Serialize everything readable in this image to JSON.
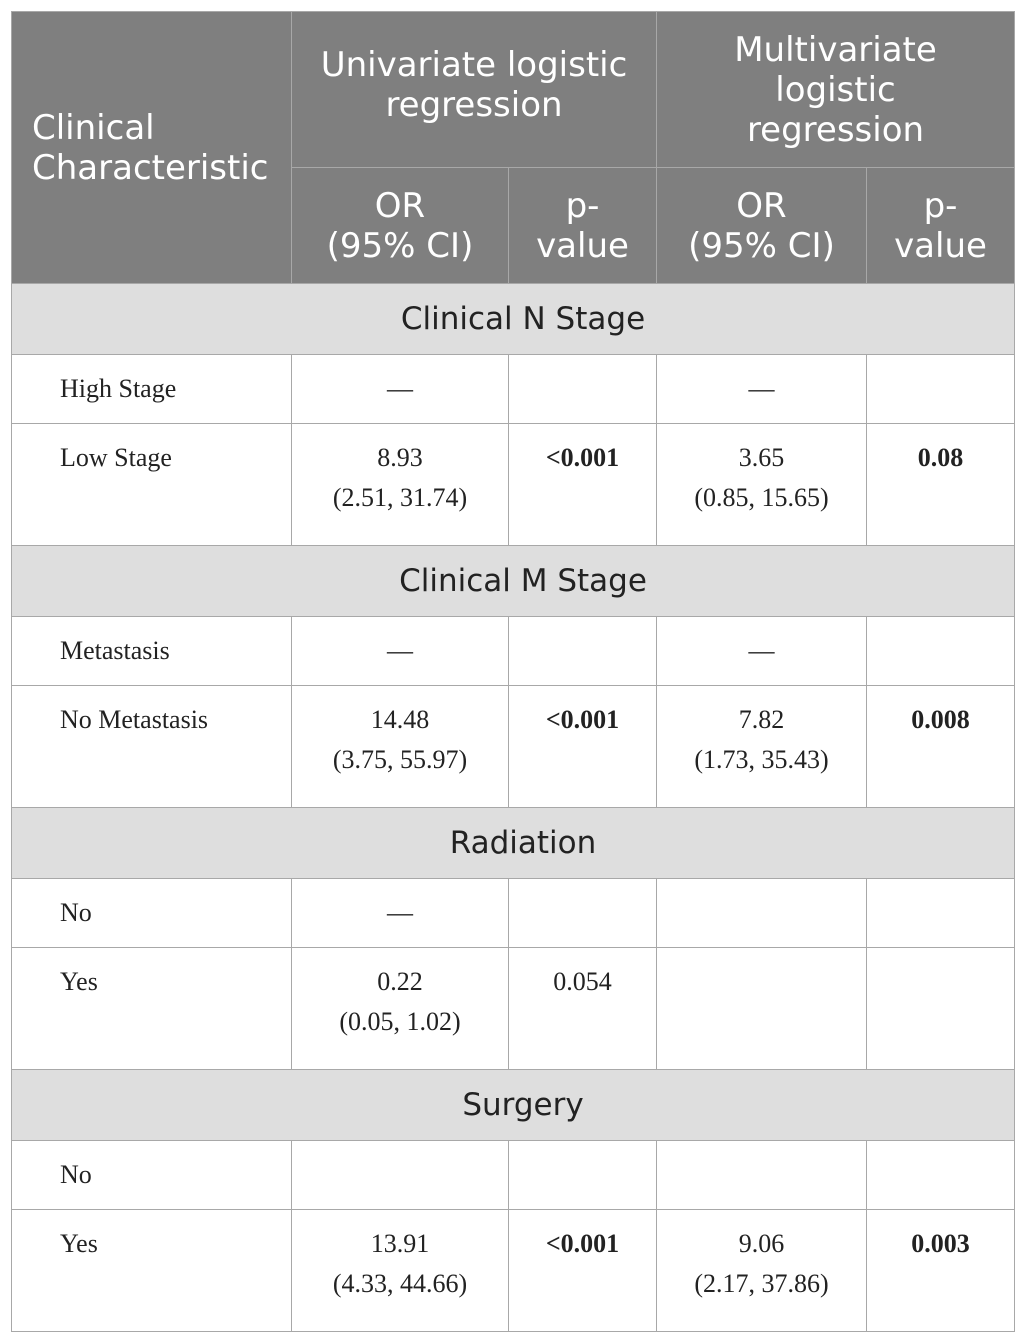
{
  "header": {
    "clinical_characteristic": [
      "Clinical",
      "Characteristic"
    ],
    "univariate": [
      "Univariate logistic",
      "regression"
    ],
    "multivariate": [
      "Multivariate",
      "logistic",
      "regression"
    ],
    "or_ci": [
      "OR",
      "(95% CI)"
    ],
    "p_value": [
      "p-",
      "value"
    ]
  },
  "sections": [
    {
      "title": "Clinical N Stage",
      "rows": [
        {
          "label": "High Stage",
          "uni_or": "—",
          "uni_ci": "",
          "uni_p": "",
          "uni_p_bold": false,
          "multi_or": "—",
          "multi_ci": "",
          "multi_p": "",
          "multi_p_bold": false
        },
        {
          "label": "Low Stage",
          "uni_or": "8.93",
          "uni_ci": "(2.51, 31.74)",
          "uni_p": "<0.001",
          "uni_p_bold": true,
          "multi_or": "3.65",
          "multi_ci": "(0.85, 15.65)",
          "multi_p": "0.08",
          "multi_p_bold": true
        }
      ]
    },
    {
      "title": "Clinical M Stage",
      "rows": [
        {
          "label": "Metastasis",
          "uni_or": "—",
          "uni_ci": "",
          "uni_p": "",
          "uni_p_bold": false,
          "multi_or": "—",
          "multi_ci": "",
          "multi_p": "",
          "multi_p_bold": false
        },
        {
          "label": "No Metastasis",
          "uni_or": "14.48",
          "uni_ci": "(3.75, 55.97)",
          "uni_p": "<0.001",
          "uni_p_bold": true,
          "multi_or": "7.82",
          "multi_ci": "(1.73, 35.43)",
          "multi_p": "0.008",
          "multi_p_bold": true
        }
      ]
    },
    {
      "title": "Radiation",
      "rows": [
        {
          "label": "No",
          "uni_or": "—",
          "uni_ci": "",
          "uni_p": "",
          "uni_p_bold": false,
          "multi_or": "",
          "multi_ci": "",
          "multi_p": "",
          "multi_p_bold": false
        },
        {
          "label": "Yes",
          "uni_or": "0.22",
          "uni_ci": "(0.05, 1.02)",
          "uni_p": "0.054",
          "uni_p_bold": false,
          "multi_or": "",
          "multi_ci": "",
          "multi_p": "",
          "multi_p_bold": false
        }
      ]
    },
    {
      "title": "Surgery",
      "rows": [
        {
          "label": "No",
          "uni_or": "",
          "uni_ci": "",
          "uni_p": "",
          "uni_p_bold": false,
          "multi_or": "",
          "multi_ci": "",
          "multi_p": "",
          "multi_p_bold": false
        },
        {
          "label": "Yes",
          "uni_or": "13.91",
          "uni_ci": "(4.33, 44.66)",
          "uni_p": "<0.001",
          "uni_p_bold": true,
          "multi_or": "9.06",
          "multi_ci": "(2.17, 37.86)",
          "multi_p": "0.003",
          "multi_p_bold": true
        }
      ]
    }
  ]
}
